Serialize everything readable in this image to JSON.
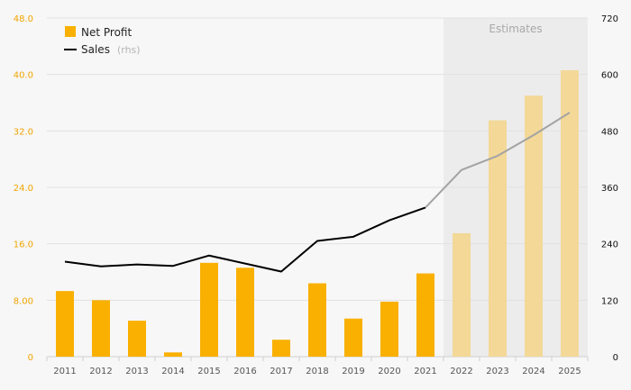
{
  "chart_data": {
    "type": "bar",
    "categories": [
      "2011",
      "2012",
      "2013",
      "2014",
      "2015",
      "2016",
      "2017",
      "2018",
      "2019",
      "2020",
      "2021",
      "2022",
      "2023",
      "2024",
      "2025"
    ],
    "series": [
      {
        "name": "Net Profit",
        "kind": "bar",
        "axis": "left",
        "values": [
          9.3,
          8.0,
          5.1,
          0.6,
          13.3,
          12.6,
          2.4,
          10.4,
          5.4,
          7.8,
          11.8,
          17.5,
          33.5,
          37.0,
          40.6
        ]
      },
      {
        "name": "Sales",
        "name_suffix": "(rhs)",
        "kind": "line",
        "axis": "right",
        "values": [
          202,
          192,
          196,
          193,
          215,
          198,
          181,
          246,
          255,
          290,
          317,
          397,
          427,
          471,
          519
        ]
      }
    ],
    "estimate_label": "Estimates",
    "estimate_from": "2022",
    "y_left": {
      "ticks": [
        "0",
        "8.00",
        "16.0",
        "24.0",
        "32.0",
        "40.0",
        "48.0"
      ],
      "lim": [
        0,
        48
      ]
    },
    "y_right": {
      "ticks": [
        "0",
        "120",
        "240",
        "360",
        "480",
        "600",
        "720"
      ],
      "lim": [
        0,
        720
      ]
    },
    "grid": true,
    "legend_position": "top-left",
    "colors": {
      "bar": "#f9b000",
      "bar_estimate": "#f3d898",
      "line": "#000000",
      "line_estimate": "#a3a3a3",
      "estimate_band": "#ececec",
      "left_ticks": "#f0a500",
      "background": "#f7f7f7"
    }
  }
}
